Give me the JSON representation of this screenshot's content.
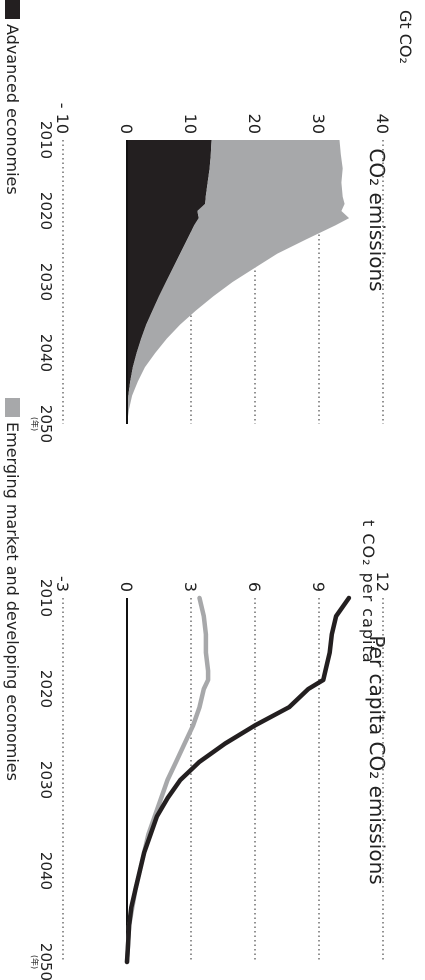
{
  "chart_data": [
    {
      "type": "area",
      "title": "CO₂ emissions",
      "ylabel": "Gt CO₂",
      "ylim": [
        -10,
        40
      ],
      "yticks": [
        "- 10",
        "0",
        "10",
        "20",
        "30",
        "40"
      ],
      "xlim": [
        2010,
        2050
      ],
      "xticks": [
        "2010",
        "2020",
        "2030",
        "2040",
        "2050"
      ],
      "x_end_note": "(年)",
      "stacked": true,
      "x": [
        2010,
        2012,
        2014,
        2016,
        2018,
        2019,
        2020,
        2021,
        2022,
        2024,
        2026,
        2028,
        2030,
        2032,
        2034,
        2036,
        2038,
        2040,
        2042,
        2044,
        2046,
        2048,
        2050
      ],
      "series": [
        {
          "name": "Advanced economies",
          "color": "#231f20",
          "values": [
            13.2,
            13.1,
            12.9,
            12.6,
            12.3,
            12.2,
            11.0,
            11.2,
            10.5,
            9.4,
            8.3,
            7.2,
            6.1,
            5.0,
            4.0,
            3.0,
            2.2,
            1.5,
            0.9,
            0.5,
            0.2,
            0.1,
            0.0
          ]
        },
        {
          "name": "Emerging market and developing economies",
          "color": "#a7a8aa",
          "values": [
            20.0,
            20.3,
            20.8,
            20.9,
            21.4,
            21.8,
            22.5,
            23.5,
            22.1,
            18.6,
            15.2,
            12.8,
            10.4,
            8.5,
            6.8,
            5.3,
            4.0,
            2.9,
            1.9,
            1.2,
            0.6,
            0.2,
            0.0
          ]
        }
      ]
    },
    {
      "type": "line",
      "title": "Per capita CO₂ emissions",
      "ylabel": "t CO₂ per capita",
      "ylim": [
        -3,
        12
      ],
      "yticks": [
        "-3",
        "0",
        "3",
        "6",
        "9",
        "12"
      ],
      "xlim": [
        2010,
        2050
      ],
      "xticks": [
        "2010",
        "2020",
        "2030",
        "2040",
        "2050"
      ],
      "x_end_note": "(年)",
      "x": [
        2010,
        2012,
        2014,
        2016,
        2018,
        2019,
        2020,
        2022,
        2024,
        2026,
        2028,
        2030,
        2032,
        2034,
        2036,
        2038,
        2040,
        2042,
        2044,
        2046,
        2048,
        2050
      ],
      "series": [
        {
          "name": "Advanced economies",
          "color": "#231f20",
          "values": [
            10.4,
            9.8,
            9.6,
            9.5,
            9.3,
            9.2,
            8.5,
            7.6,
            6.0,
            4.6,
            3.4,
            2.5,
            1.9,
            1.4,
            1.1,
            0.8,
            0.6,
            0.4,
            0.2,
            0.1,
            0.05,
            0.0
          ]
        },
        {
          "name": "Emerging market and developing economies",
          "color": "#a7a8aa",
          "values": [
            3.4,
            3.6,
            3.7,
            3.7,
            3.8,
            3.8,
            3.6,
            3.4,
            3.1,
            2.7,
            2.3,
            1.9,
            1.6,
            1.3,
            1.0,
            0.8,
            0.6,
            0.4,
            0.25,
            0.1,
            0.05,
            0.0
          ]
        }
      ]
    }
  ],
  "legend": {
    "items": [
      {
        "label": "Advanced economies",
        "color": "#231f20"
      },
      {
        "label": "Emerging market and developing economies",
        "color": "#a7a8aa"
      }
    ]
  }
}
